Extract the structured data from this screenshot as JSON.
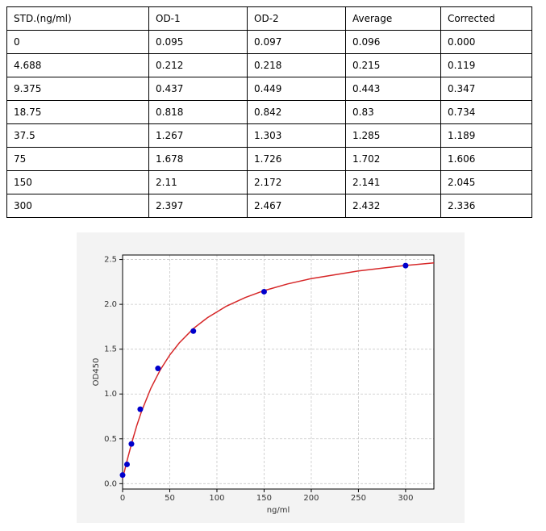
{
  "table": {
    "header": [
      "STD.(ng/ml)",
      "OD-1",
      "OD-2",
      "Average",
      "Corrected"
    ],
    "rows": [
      [
        "0",
        "0.095",
        "0.097",
        "0.096",
        "0.000"
      ],
      [
        "4.688",
        "0.212",
        "0.218",
        "0.215",
        "0.119"
      ],
      [
        "9.375",
        "0.437",
        "0.449",
        "0.443",
        "0.347"
      ],
      [
        "18.75",
        "0.818",
        "0.842",
        "0.83",
        "0.734"
      ],
      [
        "37.5",
        "1.267",
        "1.303",
        "1.285",
        "1.189"
      ],
      [
        "75",
        "1.678",
        "1.726",
        "1.702",
        "1.606"
      ],
      [
        "150",
        "2.11",
        "2.172",
        "2.141",
        "2.045"
      ],
      [
        "300",
        "2.397",
        "2.467",
        "2.432",
        "2.336"
      ]
    ]
  },
  "chart_data": {
    "type": "scatter",
    "x_label": "ng/ml",
    "y_label": "OD450",
    "x": [
      0,
      4.688,
      9.375,
      18.75,
      37.5,
      75,
      150,
      300
    ],
    "values": [
      0.096,
      0.215,
      0.443,
      0.83,
      1.285,
      1.702,
      2.141,
      2.432
    ],
    "color": "#0000cc",
    "fit": {
      "color": "#d62728",
      "x": [
        0,
        2,
        5,
        10,
        15,
        20,
        30,
        40,
        50,
        60,
        75,
        90,
        110,
        130,
        150,
        175,
        200,
        250,
        300,
        330
      ],
      "values": [
        0.06,
        0.139,
        0.266,
        0.466,
        0.645,
        0.804,
        1.065,
        1.27,
        1.435,
        1.569,
        1.729,
        1.852,
        1.979,
        2.076,
        2.153,
        2.228,
        2.287,
        2.373,
        2.434,
        2.462
      ]
    },
    "xlim": [
      0,
      330
    ],
    "ylim": [
      -0.06,
      2.55
    ],
    "xticks": [
      0,
      50,
      100,
      150,
      200,
      250,
      300
    ],
    "yticks": [
      {
        "value": 0,
        "label": "0.0"
      },
      0.5,
      {
        "value": 1,
        "label": "1.0"
      },
      1.5,
      {
        "value": 2,
        "label": "2.0"
      },
      2.5
    ],
    "grid": true
  }
}
